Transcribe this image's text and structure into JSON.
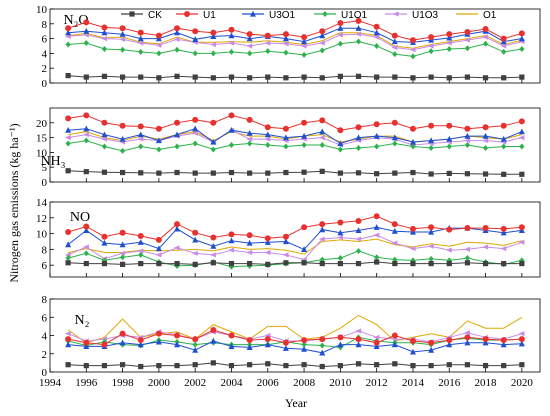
{
  "chart_data": {
    "type": "line",
    "xlabel": "Year",
    "ylabel": "Nitrogen gas emissions (kg ha⁻¹)",
    "x": [
      1995,
      1996,
      1997,
      1998,
      1999,
      2000,
      2001,
      2002,
      2003,
      2004,
      2005,
      2006,
      2007,
      2008,
      2009,
      2010,
      2011,
      2012,
      2013,
      2014,
      2015,
      2016,
      2017,
      2018,
      2019,
      2020
    ],
    "xticks": [
      "1994",
      "1996",
      "1998",
      "2000",
      "2002",
      "2004",
      "2006",
      "2008",
      "2010",
      "2012",
      "2014",
      "2016",
      "2018",
      "2020"
    ],
    "legend": [
      {
        "name": "CK",
        "color": "#404040",
        "marker": "square"
      },
      {
        "name": "U1",
        "color": "#e8312f",
        "marker": "circle"
      },
      {
        "name": "U3O1",
        "color": "#1f4fd1",
        "marker": "triangle"
      },
      {
        "name": "U1O1",
        "color": "#2cb24a",
        "marker": "diamond"
      },
      {
        "name": "U1O3",
        "color": "#c98be6",
        "marker": "triangle-left"
      },
      {
        "name": "O1",
        "color": "#e0a800",
        "marker": "none"
      }
    ],
    "panels": [
      {
        "label": "N₂O",
        "ylim": [
          0,
          10
        ],
        "yticks": [
          0,
          2,
          4,
          6,
          8,
          10
        ],
        "series": [
          {
            "name": "CK",
            "values": [
              1.0,
              0.8,
              0.9,
              0.8,
              0.8,
              0.7,
              0.9,
              0.8,
              0.7,
              0.8,
              0.7,
              0.8,
              0.7,
              0.8,
              0.7,
              0.9,
              0.9,
              0.8,
              0.8,
              0.7,
              0.8,
              0.7,
              0.8,
              0.7,
              0.7,
              0.8
            ]
          },
          {
            "name": "U1",
            "values": [
              7.4,
              8.2,
              7.5,
              7.4,
              6.8,
              6.4,
              7.4,
              7.0,
              6.8,
              7.2,
              6.6,
              6.4,
              6.6,
              6.2,
              7.0,
              8.1,
              8.4,
              7.6,
              6.4,
              5.8,
              6.2,
              6.6,
              6.9,
              7.3,
              6.0,
              6.7
            ]
          },
          {
            "name": "U3O1",
            "values": [
              6.8,
              7.0,
              6.8,
              6.6,
              6.0,
              6.0,
              6.8,
              5.9,
              6.3,
              6.4,
              6.0,
              6.3,
              6.0,
              5.6,
              6.4,
              7.4,
              7.4,
              6.8,
              5.6,
              5.5,
              5.8,
              6.1,
              6.6,
              7.0,
              5.6,
              6.0
            ]
          },
          {
            "name": "U1O1",
            "values": [
              5.2,
              5.4,
              4.6,
              4.5,
              4.2,
              4.0,
              4.5,
              4.0,
              4.0,
              4.2,
              4.0,
              4.3,
              4.1,
              3.8,
              4.4,
              5.3,
              5.6,
              5.0,
              3.9,
              3.6,
              4.3,
              4.6,
              4.7,
              5.3,
              4.2,
              4.6
            ]
          },
          {
            "name": "U1O3",
            "values": [
              6.3,
              6.5,
              6.0,
              5.9,
              5.4,
              5.1,
              5.9,
              5.5,
              5.2,
              5.4,
              5.0,
              5.4,
              5.3,
              5.0,
              5.4,
              6.5,
              6.6,
              6.2,
              4.8,
              4.5,
              5.0,
              5.4,
              5.8,
              6.2,
              5.0,
              5.6
            ]
          },
          {
            "name": "O1",
            "values": [
              6.4,
              6.7,
              6.1,
              6.2,
              5.5,
              5.3,
              6.2,
              5.5,
              5.5,
              5.6,
              5.5,
              5.7,
              5.5,
              5.2,
              5.7,
              6.8,
              6.8,
              6.4,
              5.0,
              4.7,
              5.2,
              5.6,
              6.0,
              6.4,
              5.2,
              5.8
            ]
          }
        ]
      },
      {
        "label": "NH₃",
        "ylim": [
          0,
          25
        ],
        "yticks": [
          0,
          5,
          10,
          15,
          20
        ],
        "series": [
          {
            "name": "CK",
            "values": [
              3.8,
              3.5,
              3.3,
              3.2,
              3.1,
              3.0,
              3.2,
              3.0,
              3.0,
              3.2,
              3.0,
              3.0,
              3.2,
              3.3,
              3.6,
              3.0,
              3.1,
              2.8,
              3.0,
              3.2,
              2.7,
              2.9,
              2.8,
              2.7,
              2.6,
              2.6
            ]
          },
          {
            "name": "U1",
            "values": [
              21.5,
              22.5,
              20.0,
              19.0,
              18.8,
              18.0,
              20.0,
              21.0,
              20.0,
              22.5,
              21.0,
              18.5,
              18.0,
              20.0,
              20.8,
              17.5,
              18.5,
              19.5,
              20.0,
              18.0,
              19.0,
              19.0,
              18.0,
              18.5,
              19.0,
              20.5
            ]
          },
          {
            "name": "U3O1",
            "values": [
              17.5,
              18.0,
              16.0,
              14.5,
              16.0,
              14.0,
              16.0,
              18.0,
              13.5,
              17.5,
              16.5,
              16.0,
              15.0,
              15.5,
              17.0,
              13.0,
              15.0,
              15.5,
              15.0,
              13.5,
              14.0,
              14.5,
              15.5,
              15.5,
              14.5,
              17.0
            ]
          },
          {
            "name": "U1O1",
            "values": [
              13.0,
              14.0,
              12.0,
              10.5,
              12.0,
              11.0,
              12.0,
              13.0,
              11.0,
              12.5,
              13.0,
              12.5,
              12.0,
              12.5,
              12.5,
              11.0,
              11.5,
              12.0,
              13.0,
              12.0,
              11.5,
              12.0,
              12.5,
              11.5,
              12.0,
              12.0
            ]
          },
          {
            "name": "U1O3",
            "values": [
              15.0,
              16.0,
              14.5,
              13.5,
              14.5,
              14.0,
              15.5,
              16.5,
              13.5,
              17.5,
              14.5,
              14.5,
              14.0,
              14.5,
              15.0,
              12.5,
              14.0,
              15.0,
              14.5,
              12.5,
              13.0,
              13.5,
              14.0,
              14.0,
              13.5,
              15.0
            ]
          },
          {
            "name": "O1",
            "values": [
              16.0,
              17.0,
              15.0,
              14.0,
              15.5,
              14.5,
              16.0,
              17.0,
              14.0,
              17.0,
              15.5,
              15.5,
              14.5,
              15.5,
              16.0,
              13.5,
              14.5,
              15.5,
              15.5,
              13.5,
              14.0,
              14.5,
              15.5,
              15.0,
              14.5,
              16.0
            ]
          }
        ]
      },
      {
        "label": "NO",
        "ylim": [
          4.5,
          14
        ],
        "yticks": [
          6,
          8,
          10,
          12,
          14
        ],
        "series": [
          {
            "name": "CK",
            "values": [
              6.3,
              6.2,
              6.2,
              6.1,
              6.2,
              6.2,
              6.2,
              6.1,
              6.3,
              6.2,
              6.2,
              6.1,
              6.3,
              6.3,
              6.2,
              6.2,
              6.2,
              6.4,
              6.2,
              6.2,
              6.2,
              6.2,
              6.3,
              6.2,
              6.2,
              6.2
            ]
          },
          {
            "name": "U1",
            "values": [
              10.2,
              10.9,
              9.6,
              10.1,
              9.7,
              9.2,
              11.2,
              10.1,
              9.5,
              9.9,
              9.8,
              9.4,
              9.6,
              10.8,
              11.2,
              11.4,
              11.6,
              12.2,
              11.2,
              10.6,
              10.8,
              10.5,
              10.7,
              10.7,
              10.6,
              10.8
            ]
          },
          {
            "name": "U3O1",
            "values": [
              8.6,
              10.4,
              8.8,
              8.6,
              8.9,
              8.1,
              10.6,
              9.2,
              8.4,
              9.1,
              8.8,
              8.9,
              9.0,
              8.0,
              10.5,
              10.1,
              10.4,
              10.8,
              10.3,
              10.2,
              10.2,
              10.7,
              10.7,
              10.4,
              10.1,
              10.4
            ]
          },
          {
            "name": "U1O1",
            "values": [
              6.9,
              7.5,
              6.6,
              7.0,
              7.3,
              6.4,
              5.9,
              6.0,
              6.4,
              5.8,
              5.9,
              6.0,
              6.2,
              6.3,
              6.7,
              6.9,
              7.8,
              7.0,
              6.7,
              6.6,
              6.8,
              6.6,
              6.9,
              6.4,
              6.1,
              6.6
            ]
          },
          {
            "name": "U1O3",
            "values": [
              7.3,
              8.3,
              6.8,
              7.5,
              7.8,
              7.3,
              8.2,
              7.5,
              7.3,
              7.9,
              7.6,
              7.6,
              7.3,
              6.7,
              9.3,
              9.5,
              9.3,
              9.8,
              8.8,
              8.1,
              8.4,
              7.9,
              8.0,
              8.3,
              8.1,
              8.9
            ]
          },
          {
            "name": "O1",
            "values": [
              7.6,
              8.1,
              7.6,
              7.6,
              7.9,
              7.8,
              7.9,
              8.0,
              7.8,
              8.3,
              8.0,
              8.1,
              7.9,
              7.4,
              9.0,
              9.2,
              9.0,
              9.3,
              8.6,
              8.3,
              8.7,
              8.4,
              8.9,
              8.8,
              8.5,
              9.1
            ]
          }
        ]
      },
      {
        "label": "N₂",
        "ylim": [
          0,
          8
        ],
        "yticks": [
          0,
          2,
          4,
          6,
          8
        ],
        "series": [
          {
            "name": "CK",
            "values": [
              0.8,
              0.7,
              0.7,
              0.8,
              0.6,
              0.7,
              0.7,
              0.8,
              1.0,
              0.7,
              0.8,
              0.9,
              0.7,
              0.8,
              0.6,
              0.7,
              0.9,
              0.8,
              0.9,
              0.7,
              0.7,
              0.8,
              0.8,
              0.7,
              0.7,
              0.8
            ]
          },
          {
            "name": "U1",
            "values": [
              3.6,
              3.2,
              3.0,
              4.2,
              3.5,
              4.2,
              4.0,
              3.6,
              4.6,
              4.0,
              3.5,
              3.6,
              3.2,
              3.5,
              3.6,
              3.8,
              3.6,
              3.2,
              4.0,
              3.4,
              3.2,
              3.5,
              3.8,
              3.6,
              3.5,
              3.6
            ]
          },
          {
            "name": "U3O1",
            "values": [
              3.0,
              2.8,
              2.8,
              3.2,
              3.0,
              3.3,
              3.0,
              2.4,
              3.4,
              2.8,
              2.7,
              3.0,
              2.6,
              2.5,
              2.1,
              3.0,
              3.0,
              2.8,
              3.0,
              2.2,
              2.4,
              3.0,
              3.2,
              3.2,
              3.0,
              3.1
            ]
          },
          {
            "name": "U1O1",
            "values": [
              3.4,
              2.9,
              3.3,
              3.0,
              2.9,
              3.5,
              3.3,
              3.0,
              3.2,
              3.0,
              3.0,
              3.0,
              3.3,
              3.0,
              2.9,
              2.7,
              3.8,
              3.4,
              3.2,
              3.2,
              3.0,
              3.5,
              3.7,
              3.5,
              3.5,
              3.6
            ]
          },
          {
            "name": "U1O3",
            "values": [
              4.2,
              3.4,
              3.6,
              4.0,
              3.8,
              4.4,
              4.1,
              3.6,
              4.4,
              4.0,
              3.6,
              4.0,
              3.4,
              3.4,
              3.6,
              3.8,
              4.5,
              3.8,
              3.6,
              3.6,
              3.3,
              3.8,
              4.3,
              3.8,
              3.6,
              4.2
            ]
          },
          {
            "name": "O1",
            "values": [
              4.6,
              3.2,
              3.8,
              5.8,
              3.8,
              4.2,
              4.4,
              3.6,
              5.2,
              4.4,
              3.6,
              5.0,
              5.0,
              3.6,
              3.8,
              4.8,
              6.2,
              5.2,
              3.4,
              3.8,
              4.2,
              3.8,
              5.6,
              4.8,
              4.8,
              6.0
            ]
          }
        ]
      }
    ]
  }
}
